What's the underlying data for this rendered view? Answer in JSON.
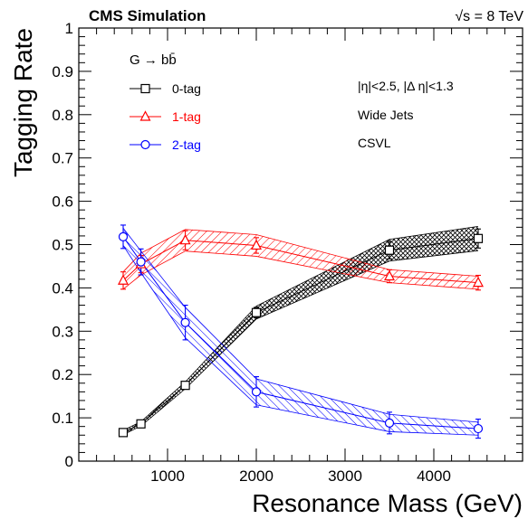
{
  "header": {
    "experiment": "CMS Simulation",
    "energy_label": "√s = 8 TeV"
  },
  "legend": {
    "title": "G → bb̄"
  },
  "annotations": [
    "|η|<2.5, |Δ η|<1.3",
    "Wide Jets",
    "CSVL"
  ],
  "colors": {
    "tag0": "#000000",
    "tag1": "#ff0000",
    "tag2": "#0000ff",
    "axis": "#000000"
  },
  "chart_data": {
    "type": "line",
    "xlabel": "Resonance Mass (GeV)",
    "ylabel": "Tagging Rate",
    "xlim": [
      0,
      5000
    ],
    "ylim": [
      0,
      1
    ],
    "x_ticks": [
      1000,
      2000,
      3000,
      4000
    ],
    "y_ticks": [
      0,
      0.1,
      0.2,
      0.3,
      0.4,
      0.5,
      0.6,
      0.7,
      0.8,
      0.9,
      1
    ],
    "y_tick_labels": [
      "0",
      "0.1",
      "0.2",
      "0.3",
      "0.4",
      "0.5",
      "0.6",
      "0.7",
      "0.8",
      "0.9",
      "1"
    ],
    "x": [
      500,
      700,
      1200,
      2000,
      3500,
      4500
    ],
    "series": [
      {
        "name": "0-tag",
        "marker": "square",
        "color": "#000000",
        "values": [
          0.066,
          0.086,
          0.175,
          0.343,
          0.487,
          0.514
        ],
        "errors": [
          0.004,
          0.005,
          0.006,
          0.012,
          0.02,
          0.022
        ],
        "band": [
          0.005,
          0.005,
          0.008,
          0.015,
          0.025,
          0.028
        ]
      },
      {
        "name": "1-tag",
        "marker": "triangle",
        "color": "#ff0000",
        "values": [
          0.417,
          0.455,
          0.51,
          0.498,
          0.427,
          0.412
        ],
        "errors": [
          0.02,
          0.02,
          0.022,
          0.018,
          0.015,
          0.017
        ],
        "band": [
          0.02,
          0.025,
          0.025,
          0.025,
          0.015,
          0.015
        ]
      },
      {
        "name": "2-tag",
        "marker": "circle",
        "color": "#0000ff",
        "values": [
          0.518,
          0.46,
          0.32,
          0.16,
          0.088,
          0.075
        ],
        "errors": [
          0.027,
          0.03,
          0.04,
          0.035,
          0.025,
          0.022
        ],
        "band": [
          0.02,
          0.025,
          0.035,
          0.03,
          0.02,
          0.015
        ]
      }
    ]
  }
}
